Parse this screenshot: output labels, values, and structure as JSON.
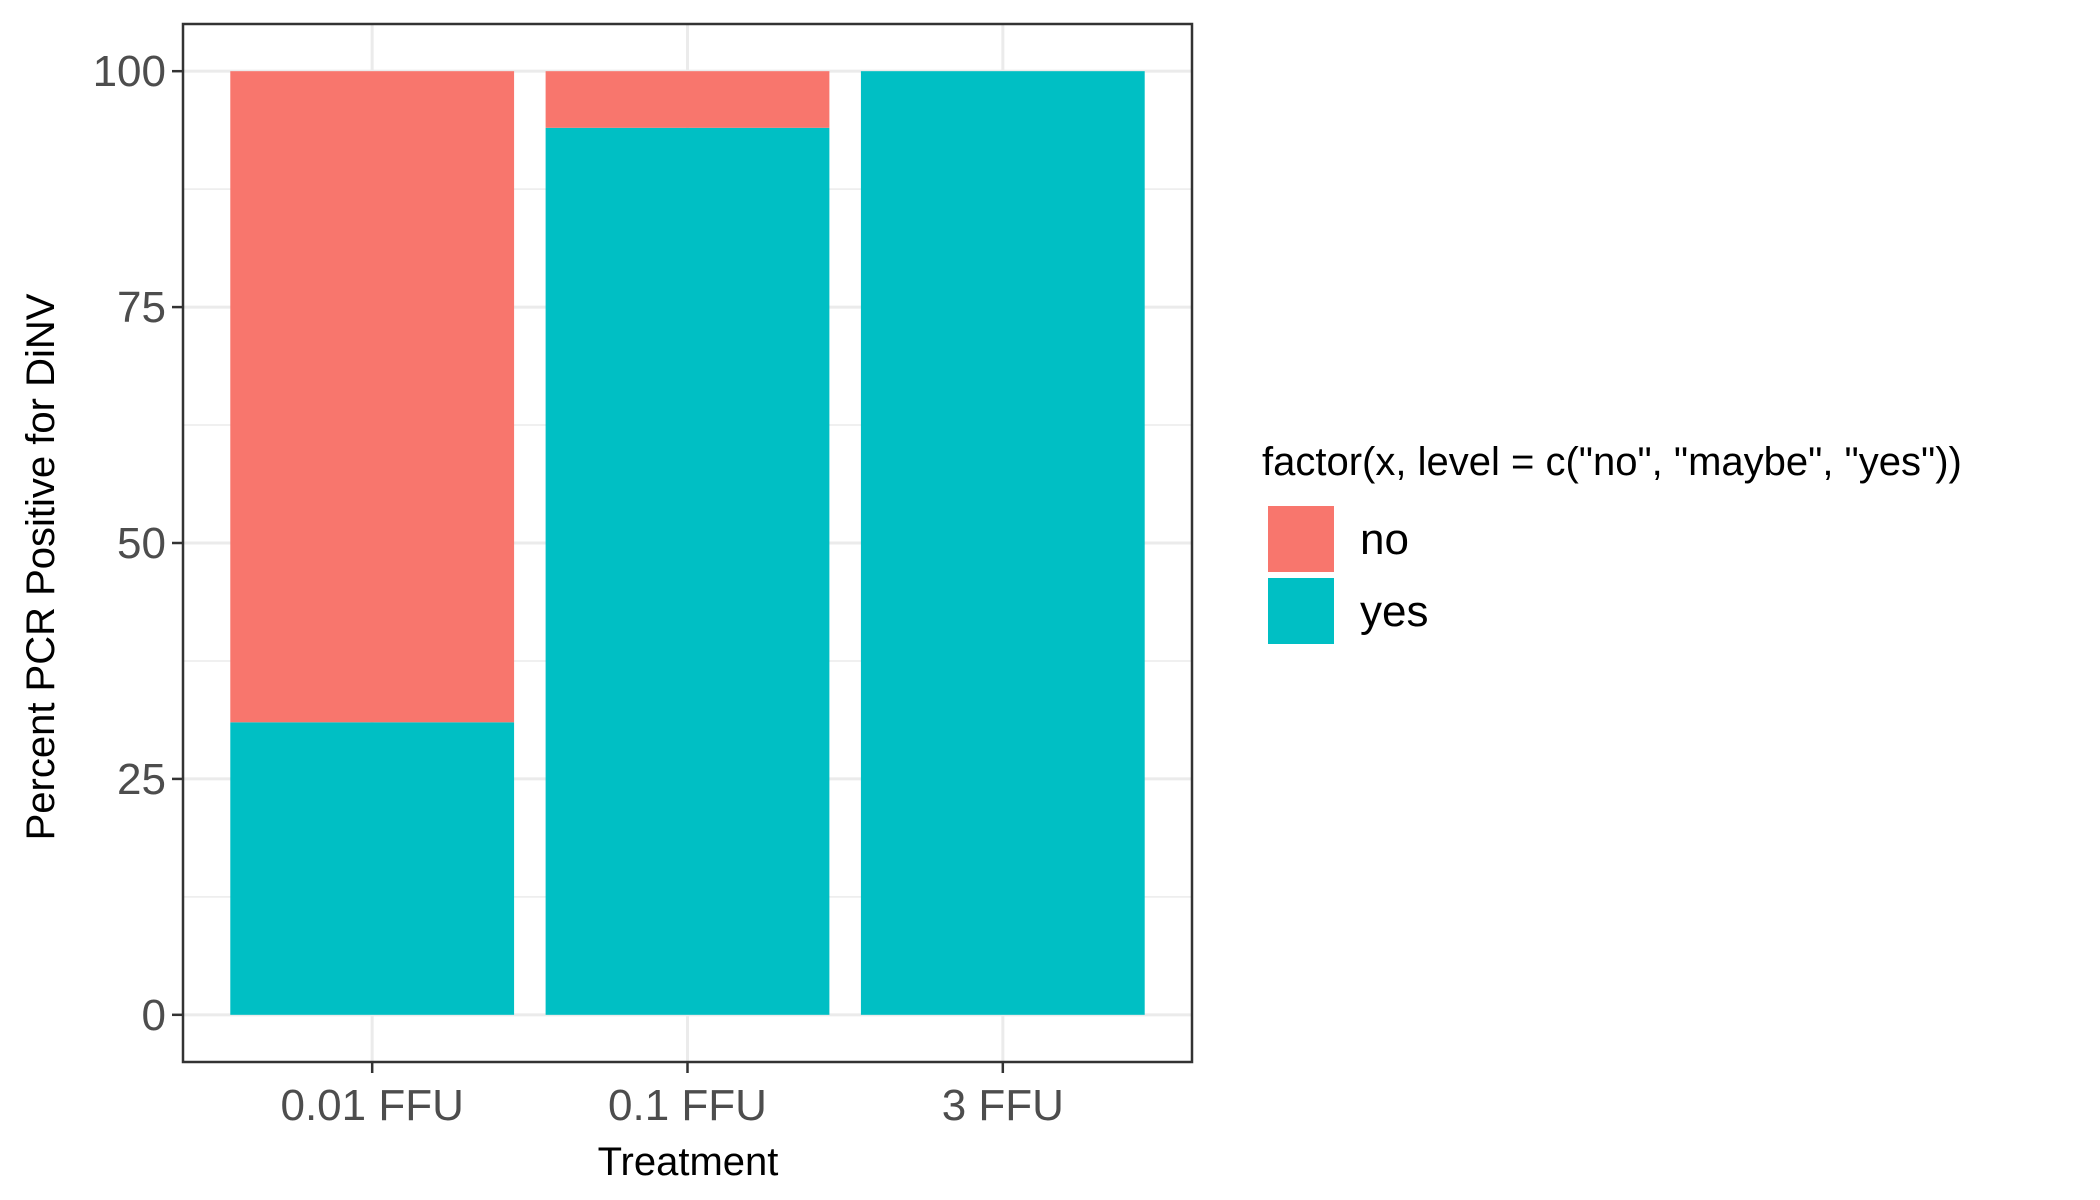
{
  "chart_data": {
    "type": "bar",
    "stacked": true,
    "categories": [
      "0.01 FFU",
      "0.1 FFU",
      "3 FFU"
    ],
    "series": [
      {
        "name": "no",
        "color": "#F8766D",
        "values": [
          69,
          6,
          0
        ]
      },
      {
        "name": "yes",
        "color": "#00BFC4",
        "values": [
          31,
          94,
          100
        ]
      }
    ],
    "title": "",
    "xlabel": "Treatment",
    "ylabel": "Percent PCR Positive for DiNV",
    "ylim": [
      -5,
      105
    ],
    "yticks": [
      0,
      25,
      50,
      75,
      100
    ],
    "grid": true,
    "legend": {
      "title": "factor(x, level = c(\"no\", \"maybe\", \"yes\"))",
      "placement": "right"
    },
    "colors": {
      "grid": "#ebebeb",
      "panel_border": "#333333",
      "tick": "#333333"
    }
  }
}
